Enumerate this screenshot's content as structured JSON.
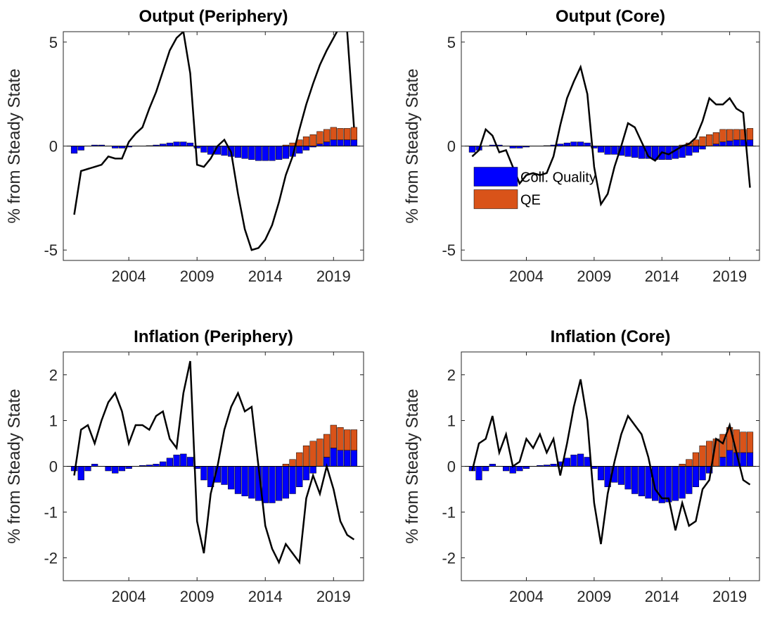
{
  "chart_data": [
    {
      "type": "combo",
      "title": "Output (Periphery)",
      "ylabel": "% from Steady State",
      "x": [
        2000,
        2000.5,
        2001,
        2001.5,
        2002,
        2002.5,
        2003,
        2003.5,
        2004,
        2004.5,
        2005,
        2005.5,
        2006,
        2006.5,
        2007,
        2007.5,
        2008,
        2008.5,
        2009,
        2009.5,
        2010,
        2010.5,
        2011,
        2011.5,
        2012,
        2012.5,
        2013,
        2013.5,
        2014,
        2014.5,
        2015,
        2015.5,
        2016,
        2016.5,
        2017,
        2017.5,
        2018,
        2018.5,
        2019,
        2019.5,
        2020,
        2020.5
      ],
      "xlim": [
        1999.2,
        2021.2
      ],
      "xticks": [
        2004,
        2009,
        2014,
        2019
      ],
      "ylim": [
        -5.5,
        5.5
      ],
      "yticks": [
        -5,
        0,
        5
      ],
      "series": [
        {
          "name": "Coll. Quality",
          "color": "#0000ff",
          "values": [
            -0.35,
            -0.2,
            0,
            0.05,
            0.05,
            0,
            -0.1,
            -0.1,
            -0.05,
            0,
            0,
            0.02,
            0.05,
            0.1,
            0.15,
            0.2,
            0.2,
            0.15,
            -0.1,
            -0.3,
            -0.4,
            -0.4,
            -0.45,
            -0.5,
            -0.55,
            -0.6,
            -0.65,
            -0.7,
            -0.7,
            -0.7,
            -0.65,
            -0.6,
            -0.5,
            -0.35,
            -0.2,
            -0.05,
            0.1,
            0.2,
            0.3,
            0.3,
            0.3,
            0.3
          ]
        },
        {
          "name": "QE",
          "color": "#d95319",
          "values": [
            0,
            0,
            0,
            0,
            0,
            0,
            0,
            0,
            0,
            0,
            0,
            0,
            0,
            0,
            0,
            0,
            0,
            0,
            0,
            0,
            0,
            0,
            0,
            0,
            0,
            0,
            0,
            0,
            0,
            0,
            0,
            0.05,
            0.15,
            0.3,
            0.45,
            0.55,
            0.6,
            0.6,
            0.6,
            0.55,
            0.55,
            0.6
          ]
        }
      ],
      "line": {
        "color": "#000000",
        "values": [
          -3.3,
          -1.2,
          -1.1,
          -1.0,
          -0.9,
          -0.5,
          -0.6,
          -0.6,
          0.2,
          0.6,
          0.9,
          1.8,
          2.6,
          3.6,
          4.6,
          5.2,
          5.5,
          3.5,
          -0.9,
          -1.0,
          -0.6,
          0,
          0.3,
          -0.3,
          -2.3,
          -4.0,
          -5.0,
          -4.9,
          -4.5,
          -3.8,
          -2.7,
          -1.4,
          -0.5,
          0.8,
          2.0,
          3.0,
          3.9,
          4.6,
          5.2,
          5.8,
          5.5,
          0.9
        ]
      }
    },
    {
      "type": "combo",
      "title": "Output (Core)",
      "ylabel": "% from Steady State",
      "x": [
        2000,
        2000.5,
        2001,
        2001.5,
        2002,
        2002.5,
        2003,
        2003.5,
        2004,
        2004.5,
        2005,
        2005.5,
        2006,
        2006.5,
        2007,
        2007.5,
        2008,
        2008.5,
        2009,
        2009.5,
        2010,
        2010.5,
        2011,
        2011.5,
        2012,
        2012.5,
        2013,
        2013.5,
        2014,
        2014.5,
        2015,
        2015.5,
        2016,
        2016.5,
        2017,
        2017.5,
        2018,
        2018.5,
        2019,
        2019.5,
        2020,
        2020.5
      ],
      "xlim": [
        1999.2,
        2021.2
      ],
      "xticks": [
        2004,
        2009,
        2014,
        2019
      ],
      "ylim": [
        -5.5,
        5.5
      ],
      "yticks": [
        -5,
        0,
        5
      ],
      "legend": "west",
      "series": [
        {
          "name": "Coll. Quality",
          "color": "#0000ff",
          "values": [
            -0.3,
            -0.2,
            0,
            0.05,
            0.05,
            0,
            -0.1,
            -0.1,
            -0.05,
            0,
            0,
            0.02,
            0.05,
            0.1,
            0.15,
            0.2,
            0.2,
            0.15,
            -0.1,
            -0.3,
            -0.4,
            -0.4,
            -0.45,
            -0.5,
            -0.55,
            -0.6,
            -0.6,
            -0.65,
            -0.65,
            -0.65,
            -0.6,
            -0.55,
            -0.45,
            -0.3,
            -0.15,
            0,
            0.1,
            0.2,
            0.25,
            0.3,
            0.3,
            0.3
          ]
        },
        {
          "name": "QE",
          "color": "#d95319",
          "values": [
            0,
            0,
            0,
            0,
            0,
            0,
            0,
            0,
            0,
            0,
            0,
            0,
            0,
            0,
            0,
            0,
            0,
            0,
            0,
            0,
            0,
            0,
            0,
            0,
            0,
            0,
            0,
            0,
            0,
            0,
            0,
            0.05,
            0.15,
            0.3,
            0.45,
            0.55,
            0.55,
            0.6,
            0.55,
            0.5,
            0.5,
            0.55
          ]
        }
      ],
      "line": {
        "color": "#000000",
        "values": [
          -0.5,
          -0.2,
          0.8,
          0.5,
          -0.3,
          -0.2,
          -1.0,
          -1.8,
          -1.4,
          -1.3,
          -1.4,
          -1.3,
          -0.5,
          1.0,
          2.3,
          3.1,
          3.8,
          2.5,
          -1.0,
          -2.8,
          -2.3,
          -1.0,
          0,
          1.1,
          0.9,
          0.2,
          -0.5,
          -0.7,
          -0.3,
          -0.4,
          -0.2,
          0,
          0.1,
          0.4,
          1.2,
          2.3,
          2.0,
          2.0,
          2.3,
          1.8,
          1.6,
          -2.0
        ]
      }
    },
    {
      "type": "combo",
      "title": "Inflation (Periphery)",
      "ylabel": "% from Steady State",
      "x": [
        2000,
        2000.5,
        2001,
        2001.5,
        2002,
        2002.5,
        2003,
        2003.5,
        2004,
        2004.5,
        2005,
        2005.5,
        2006,
        2006.5,
        2007,
        2007.5,
        2008,
        2008.5,
        2009,
        2009.5,
        2010,
        2010.5,
        2011,
        2011.5,
        2012,
        2012.5,
        2013,
        2013.5,
        2014,
        2014.5,
        2015,
        2015.5,
        2016,
        2016.5,
        2017,
        2017.5,
        2018,
        2018.5,
        2019,
        2019.5,
        2020,
        2020.5
      ],
      "xlim": [
        1999.2,
        2021.2
      ],
      "xticks": [
        2004,
        2009,
        2014,
        2019
      ],
      "ylim": [
        -2.5,
        2.5
      ],
      "yticks": [
        -2,
        -1,
        0,
        1,
        2
      ],
      "series": [
        {
          "name": "Coll. Quality",
          "color": "#0000ff",
          "values": [
            -0.1,
            -0.3,
            -0.1,
            0.05,
            0,
            -0.1,
            -0.15,
            -0.1,
            -0.05,
            0,
            0.02,
            0.03,
            0.05,
            0.1,
            0.18,
            0.25,
            0.27,
            0.2,
            -0.05,
            -0.3,
            -0.45,
            -0.35,
            -0.4,
            -0.5,
            -0.6,
            -0.65,
            -0.7,
            -0.75,
            -0.8,
            -0.8,
            -0.75,
            -0.7,
            -0.6,
            -0.45,
            -0.3,
            -0.15,
            0,
            0.2,
            0.4,
            0.35,
            0.35,
            0.35
          ]
        },
        {
          "name": "QE",
          "color": "#d95319",
          "values": [
            0,
            0,
            0,
            0,
            0,
            0,
            0,
            0,
            0,
            0,
            0,
            0,
            0,
            0,
            0,
            0,
            0,
            0,
            0,
            0,
            0,
            0,
            0,
            0,
            0,
            0,
            0,
            0,
            0,
            0,
            0,
            0.05,
            0.15,
            0.3,
            0.45,
            0.55,
            0.6,
            0.5,
            0.5,
            0.5,
            0.45,
            0.45
          ]
        }
      ],
      "line": {
        "color": "#000000",
        "values": [
          -0.2,
          0.8,
          0.9,
          0.5,
          1.0,
          1.4,
          1.6,
          1.2,
          0.5,
          0.9,
          0.9,
          0.8,
          1.1,
          1.2,
          0.6,
          0.4,
          1.6,
          2.3,
          -1.2,
          -1.9,
          -0.6,
          0,
          0.8,
          1.3,
          1.6,
          1.2,
          1.3,
          0,
          -1.3,
          -1.8,
          -2.1,
          -1.7,
          -1.9,
          -2.1,
          -0.7,
          -0.2,
          -0.6,
          0,
          -0.5,
          -1.2,
          -1.5,
          -1.6
        ]
      }
    },
    {
      "type": "combo",
      "title": "Inflation (Core)",
      "ylabel": "% from Steady State",
      "x": [
        2000,
        2000.5,
        2001,
        2001.5,
        2002,
        2002.5,
        2003,
        2003.5,
        2004,
        2004.5,
        2005,
        2005.5,
        2006,
        2006.5,
        2007,
        2007.5,
        2008,
        2008.5,
        2009,
        2009.5,
        2010,
        2010.5,
        2011,
        2011.5,
        2012,
        2012.5,
        2013,
        2013.5,
        2014,
        2014.5,
        2015,
        2015.5,
        2016,
        2016.5,
        2017,
        2017.5,
        2018,
        2018.5,
        2019,
        2019.5,
        2020,
        2020.5
      ],
      "xlim": [
        1999.2,
        2021.2
      ],
      "xticks": [
        2004,
        2009,
        2014,
        2019
      ],
      "ylim": [
        -2.5,
        2.5
      ],
      "yticks": [
        -2,
        -1,
        0,
        1,
        2
      ],
      "series": [
        {
          "name": "Coll. Quality",
          "color": "#0000ff",
          "values": [
            -0.1,
            -0.3,
            -0.1,
            0.05,
            0,
            -0.1,
            -0.15,
            -0.1,
            -0.05,
            0,
            0.02,
            0.03,
            0.05,
            0.1,
            0.18,
            0.25,
            0.27,
            0.2,
            -0.05,
            -0.3,
            -0.45,
            -0.35,
            -0.4,
            -0.5,
            -0.6,
            -0.65,
            -0.7,
            -0.75,
            -0.8,
            -0.78,
            -0.75,
            -0.7,
            -0.6,
            -0.45,
            -0.3,
            -0.15,
            0,
            0.2,
            0.35,
            0.3,
            0.3,
            0.3
          ]
        },
        {
          "name": "QE",
          "color": "#d95319",
          "values": [
            0,
            0,
            0,
            0,
            0,
            0,
            0,
            0,
            0,
            0,
            0,
            0,
            0,
            0,
            0,
            0,
            0,
            0,
            0,
            0,
            0,
            0,
            0,
            0,
            0,
            0,
            0,
            0,
            0,
            0,
            0,
            0.05,
            0.15,
            0.3,
            0.45,
            0.55,
            0.6,
            0.5,
            0.5,
            0.5,
            0.45,
            0.45
          ]
        }
      ],
      "line": {
        "color": "#000000",
        "values": [
          -0.1,
          0.5,
          0.6,
          1.1,
          0.3,
          0.7,
          0,
          0.1,
          0.6,
          0.4,
          0.7,
          0.3,
          0.6,
          -0.2,
          0.5,
          1.3,
          1.9,
          1.0,
          -0.8,
          -1.7,
          -0.6,
          0.1,
          0.7,
          1.1,
          0.9,
          0.7,
          0.2,
          -0.5,
          -0.7,
          -0.7,
          -1.4,
          -0.8,
          -1.3,
          -1.2,
          -0.5,
          -0.3,
          0.6,
          0.5,
          0.9,
          0.3,
          -0.3,
          -0.4
        ]
      }
    }
  ]
}
